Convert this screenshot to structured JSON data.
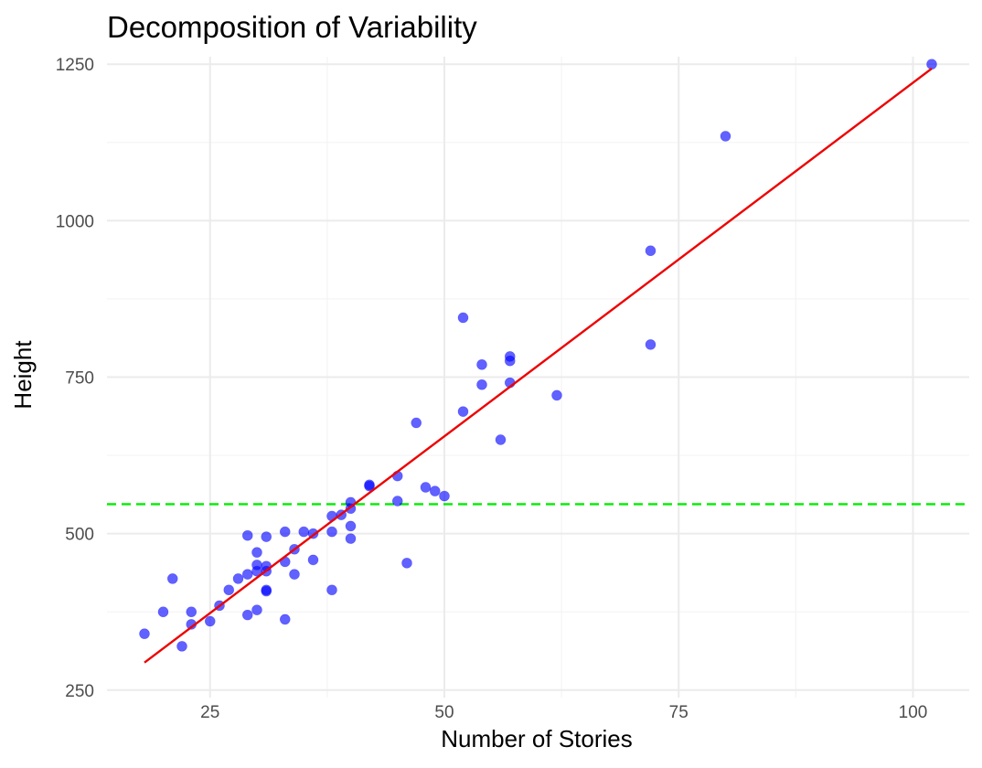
{
  "chart_data": {
    "type": "scatter",
    "title": "Decomposition of Variability",
    "xlabel": "Number of Stories",
    "ylabel": "Height",
    "xlim": [
      14,
      106
    ],
    "ylim": [
      238,
      1262
    ],
    "x_ticks": [
      25,
      50,
      75,
      100
    ],
    "y_ticks": [
      250,
      500,
      750,
      1000,
      1250
    ],
    "x_tick_labels": [
      "25",
      "50",
      "75",
      "100"
    ],
    "y_tick_labels": [
      "250",
      "500",
      "750",
      "1000",
      "1250"
    ],
    "grid": true,
    "legend": "none",
    "colors": {
      "points": "#0000ff",
      "regression_line": "#ee0000",
      "mean_line": "#00ee00"
    },
    "points": [
      {
        "x": 18,
        "y": 340
      },
      {
        "x": 20,
        "y": 375
      },
      {
        "x": 21,
        "y": 428
      },
      {
        "x": 22,
        "y": 320
      },
      {
        "x": 23,
        "y": 355
      },
      {
        "x": 23,
        "y": 375
      },
      {
        "x": 25,
        "y": 360
      },
      {
        "x": 26,
        "y": 385
      },
      {
        "x": 27,
        "y": 410
      },
      {
        "x": 28,
        "y": 428
      },
      {
        "x": 29,
        "y": 435
      },
      {
        "x": 29,
        "y": 370
      },
      {
        "x": 29,
        "y": 497
      },
      {
        "x": 30,
        "y": 440
      },
      {
        "x": 30,
        "y": 450
      },
      {
        "x": 30,
        "y": 470
      },
      {
        "x": 30,
        "y": 378
      },
      {
        "x": 31,
        "y": 448
      },
      {
        "x": 31,
        "y": 440
      },
      {
        "x": 31,
        "y": 410
      },
      {
        "x": 31,
        "y": 408
      },
      {
        "x": 31,
        "y": 495
      },
      {
        "x": 33,
        "y": 503
      },
      {
        "x": 33,
        "y": 455
      },
      {
        "x": 33,
        "y": 363
      },
      {
        "x": 34,
        "y": 475
      },
      {
        "x": 34,
        "y": 435
      },
      {
        "x": 35,
        "y": 503
      },
      {
        "x": 36,
        "y": 500
      },
      {
        "x": 36,
        "y": 458
      },
      {
        "x": 38,
        "y": 528
      },
      {
        "x": 38,
        "y": 503
      },
      {
        "x": 38,
        "y": 410
      },
      {
        "x": 39,
        "y": 530
      },
      {
        "x": 40,
        "y": 550
      },
      {
        "x": 40,
        "y": 540
      },
      {
        "x": 40,
        "y": 512
      },
      {
        "x": 40,
        "y": 492
      },
      {
        "x": 42,
        "y": 578
      },
      {
        "x": 42,
        "y": 576
      },
      {
        "x": 45,
        "y": 592
      },
      {
        "x": 45,
        "y": 552
      },
      {
        "x": 46,
        "y": 453
      },
      {
        "x": 47,
        "y": 677
      },
      {
        "x": 48,
        "y": 574
      },
      {
        "x": 49,
        "y": 568
      },
      {
        "x": 50,
        "y": 560
      },
      {
        "x": 52,
        "y": 845
      },
      {
        "x": 52,
        "y": 695
      },
      {
        "x": 54,
        "y": 770
      },
      {
        "x": 54,
        "y": 738
      },
      {
        "x": 56,
        "y": 650
      },
      {
        "x": 57,
        "y": 783
      },
      {
        "x": 57,
        "y": 776
      },
      {
        "x": 57,
        "y": 741
      },
      {
        "x": 62,
        "y": 721
      },
      {
        "x": 72,
        "y": 952
      },
      {
        "x": 72,
        "y": 802
      },
      {
        "x": 80,
        "y": 1135
      },
      {
        "x": 102,
        "y": 1250
      }
    ],
    "regression_line": {
      "x1": 18,
      "y1": 294,
      "x2": 102,
      "y2": 1243
    },
    "mean_line": {
      "y": 547
    }
  }
}
